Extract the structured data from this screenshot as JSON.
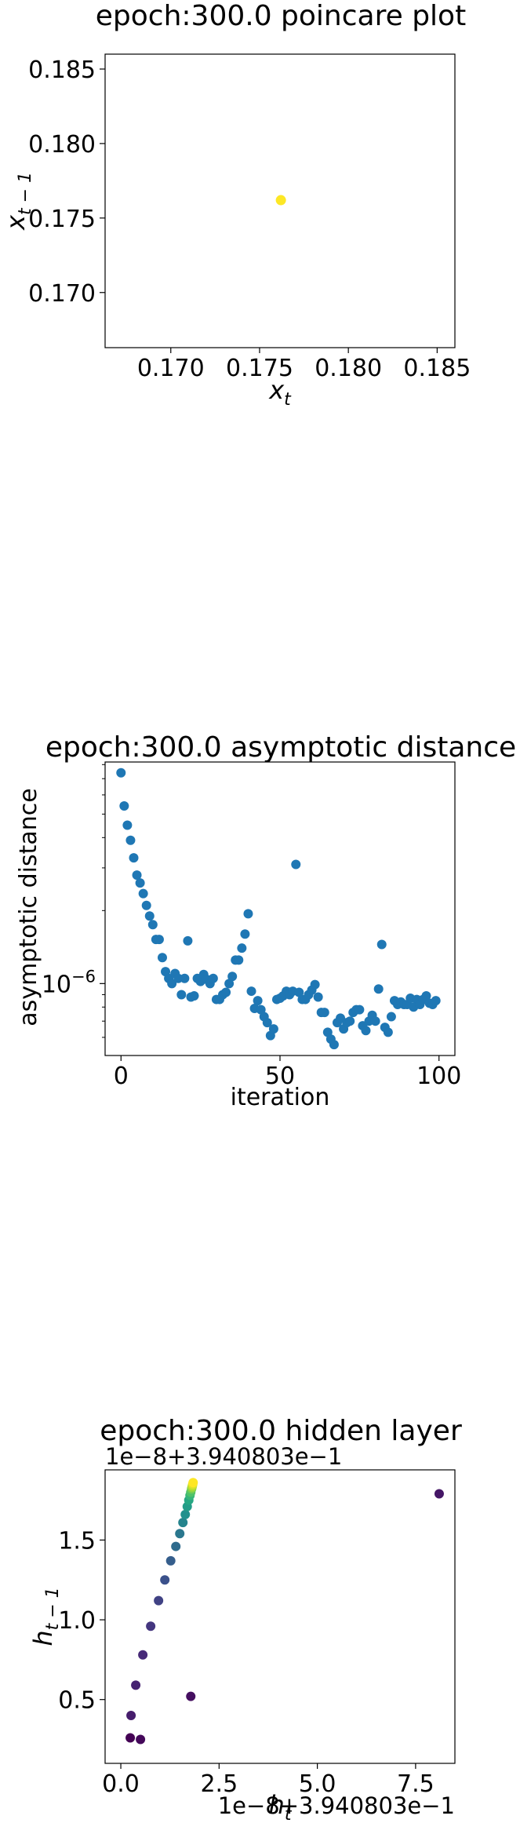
{
  "chart_data": [
    {
      "type": "scatter",
      "title": "epoch:300.0 poincare plot",
      "xlabel": "x_t",
      "ylabel": "x_{t-1}",
      "xlim": [
        0.1663,
        0.186
      ],
      "ylim": [
        0.1663,
        0.186
      ],
      "xticks": [
        0.17,
        0.175,
        0.18,
        0.185
      ],
      "xtick_labels": [
        "0.170",
        "0.175",
        "0.180",
        "0.185"
      ],
      "yticks": [
        0.17,
        0.175,
        0.18,
        0.185
      ],
      "ytick_labels": [
        "0.170",
        "0.175",
        "0.180",
        "0.185"
      ],
      "grid": false,
      "colors": {
        "point": "#fde725"
      },
      "points": [
        {
          "x": 0.1762,
          "y": 0.1762
        }
      ]
    },
    {
      "type": "scatter",
      "title": "epoch:300.0 asymptotic distance",
      "xlabel": "iteration",
      "ylabel": "asymptotic distance",
      "yscale": "log",
      "xlim": [
        -5,
        105
      ],
      "ylim": [
        5.05e-07,
        8.2e-06
      ],
      "xticks": [
        0,
        50,
        100
      ],
      "xtick_labels": [
        "0",
        "50",
        "100"
      ],
      "yticks": [
        1e-06
      ],
      "ytick_labels": [
        "10^-6"
      ],
      "grid": false,
      "colors": {
        "point": "#1f77b4"
      },
      "x": [
        0,
        1,
        2,
        3,
        4,
        5,
        6,
        7,
        8,
        9,
        10,
        11,
        12,
        13,
        14,
        15,
        16,
        17,
        18,
        19,
        20,
        21,
        22,
        23,
        24,
        25,
        26,
        27,
        28,
        29,
        30,
        31,
        32,
        33,
        34,
        35,
        36,
        37,
        38,
        39,
        40,
        41,
        42,
        43,
        44,
        45,
        46,
        47,
        48,
        49,
        50,
        51,
        52,
        53,
        54,
        55,
        56,
        57,
        58,
        59,
        60,
        61,
        62,
        63,
        64,
        65,
        66,
        67,
        68,
        69,
        70,
        71,
        72,
        73,
        74,
        75,
        76,
        77,
        78,
        79,
        80,
        81,
        82,
        83,
        84,
        85,
        86,
        87,
        88,
        89,
        90,
        91,
        92,
        93,
        94,
        95,
        96,
        97,
        98,
        99
      ],
      "y": [
        7.4e-06,
        5.4e-06,
        4.5e-06,
        3.9e-06,
        3.3e-06,
        2.8e-06,
        2.6e-06,
        2.35e-06,
        2.1e-06,
        1.9e-06,
        1.75e-06,
        1.52e-06,
        1.52e-06,
        1.28e-06,
        1.12e-06,
        1.05e-06,
        1e-06,
        1.1e-06,
        1.05e-06,
        9e-07,
        1.05e-06,
        1.5e-06,
        8.8e-07,
        8.9e-07,
        1.05e-06,
        1.02e-06,
        1.09e-06,
        1.04e-06,
        1e-06,
        1.05e-06,
        8.6e-07,
        8.6e-07,
        9e-07,
        9.2e-07,
        1e-06,
        1.07e-06,
        1.25e-06,
        1.25e-06,
        1.4e-06,
        1.6e-06,
        1.94e-06,
        9.3e-07,
        7.9e-07,
        8.5e-07,
        7.8e-07,
        7.3e-07,
        6.9e-07,
        6.1e-07,
        6.5e-07,
        8.6e-07,
        8.7e-07,
        8.9e-07,
        9.3e-07,
        9e-07,
        9.3e-07,
        3.1e-06,
        9.2e-07,
        8.6e-07,
        8.6e-07,
        9e-07,
        9.4e-07,
        9.9e-07,
        8.8e-07,
        7.6e-07,
        7.6e-07,
        6.3e-07,
        5.9e-07,
        5.6e-07,
        6.9e-07,
        7.2e-07,
        6.5e-07,
        6.9e-07,
        7e-07,
        7.6e-07,
        7.8e-07,
        7.8e-07,
        6.7e-07,
        6.4e-07,
        7e-07,
        7.4e-07,
        7e-07,
        9.5e-07,
        1.45e-06,
        6.6e-07,
        6.3e-07,
        7.3e-07,
        8.5e-07,
        8.2e-07,
        8.4e-07,
        8.2e-07,
        8.2e-07,
        8.7e-07,
        8e-07,
        8.6e-07,
        8.2e-07,
        8.6e-07,
        8.9e-07,
        8.3e-07,
        8.2e-07,
        8.5e-07
      ]
    },
    {
      "type": "scatter",
      "title": "epoch:300.0 hidden layer",
      "xlabel": "h_t",
      "ylabel": "h_{t-1}",
      "offset_label_x": "1e−8+3.940803e−1",
      "offset_label_y": "1e−8+3.940803e−1",
      "xlim": [
        -0.4,
        8.5
      ],
      "ylim": [
        0.1,
        1.94
      ],
      "xticks": [
        0.0,
        2.5,
        5.0,
        7.5
      ],
      "xtick_labels": [
        "0.0",
        "2.5",
        "5.0",
        "7.5"
      ],
      "yticks": [
        0.5,
        1.0,
        1.5
      ],
      "ytick_labels": [
        "0.5",
        "1.0",
        "1.5"
      ],
      "grid": false,
      "colormap": "viridis",
      "points": [
        {
          "x": 0.24,
          "y": 0.26,
          "c": 0.0
        },
        {
          "x": 0.5,
          "y": 0.25,
          "c": 0.02
        },
        {
          "x": 1.78,
          "y": 0.52,
          "c": 0.04
        },
        {
          "x": 8.1,
          "y": 1.79,
          "c": 0.06
        },
        {
          "x": 0.26,
          "y": 0.4,
          "c": 0.08
        },
        {
          "x": 0.38,
          "y": 0.59,
          "c": 0.1
        },
        {
          "x": 0.56,
          "y": 0.78,
          "c": 0.12
        },
        {
          "x": 0.76,
          "y": 0.96,
          "c": 0.16
        },
        {
          "x": 0.96,
          "y": 1.12,
          "c": 0.2
        },
        {
          "x": 1.12,
          "y": 1.25,
          "c": 0.25
        },
        {
          "x": 1.27,
          "y": 1.37,
          "c": 0.3
        },
        {
          "x": 1.4,
          "y": 1.46,
          "c": 0.35
        },
        {
          "x": 1.5,
          "y": 1.54,
          "c": 0.4
        },
        {
          "x": 1.58,
          "y": 1.61,
          "c": 0.45
        },
        {
          "x": 1.64,
          "y": 1.66,
          "c": 0.5
        },
        {
          "x": 1.69,
          "y": 1.71,
          "c": 0.55
        },
        {
          "x": 1.73,
          "y": 1.75,
          "c": 0.6
        },
        {
          "x": 1.76,
          "y": 1.78,
          "c": 0.66
        },
        {
          "x": 1.78,
          "y": 1.8,
          "c": 0.72
        },
        {
          "x": 1.8,
          "y": 1.82,
          "c": 0.78
        },
        {
          "x": 1.81,
          "y": 1.83,
          "c": 0.84
        },
        {
          "x": 1.82,
          "y": 1.84,
          "c": 0.9
        },
        {
          "x": 1.83,
          "y": 1.85,
          "c": 0.95
        },
        {
          "x": 1.84,
          "y": 1.86,
          "c": 1.0
        }
      ]
    }
  ]
}
